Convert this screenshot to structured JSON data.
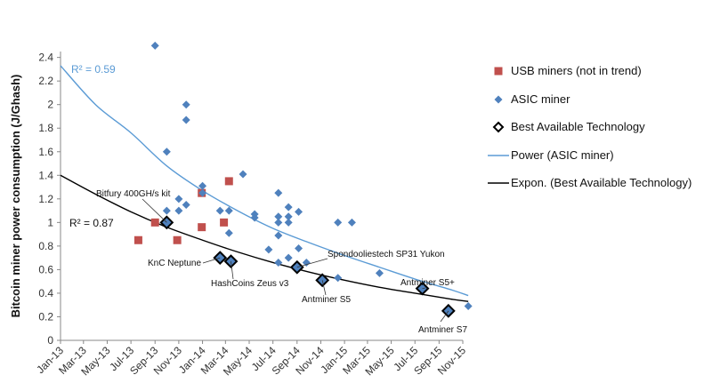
{
  "chart_data": {
    "type": "scatter",
    "title": "",
    "xlabel": "",
    "ylabel": "Bitcoin miner power consumption (J/Ghash)",
    "x_ticks": [
      "Jan-13",
      "Mar-13",
      "May-13",
      "Jul-13",
      "Sep-13",
      "Nov-13",
      "Jan-14",
      "Mar-14",
      "May-14",
      "Jul-14",
      "Sep-14",
      "Nov-14",
      "Jan-15",
      "Mar-15",
      "May-15",
      "Jul-15",
      "Sep-15",
      "Nov-15"
    ],
    "xlim": [
      "2013-01",
      "2015-11"
    ],
    "y_ticks": [
      "0",
      "0.2",
      "0.4",
      "0.6",
      "0.8",
      "1",
      "1.2",
      "1.4",
      "1.6",
      "1.8",
      "2",
      "2.2",
      "2.4"
    ],
    "ylim": [
      0,
      2.45
    ],
    "grid": false,
    "legend_position": "right",
    "series": [
      {
        "name": "USB miners (not in trend)",
        "marker": "square",
        "color": "#c0504d",
        "points": [
          [
            "2013-07-20",
            0.85
          ],
          [
            "2013-09-01",
            1.0
          ],
          [
            "2013-10-28",
            0.85
          ],
          [
            "2013-12-30",
            1.25
          ],
          [
            "2013-12-30",
            0.96
          ],
          [
            "2014-02-25",
            1.0
          ],
          [
            "2014-03-10",
            1.35
          ]
        ]
      },
      {
        "name": "ASIC miner",
        "marker": "diamond",
        "color": "#4f81bd",
        "points": [
          [
            "2013-09-01",
            2.5
          ],
          [
            "2013-10-01",
            1.6
          ],
          [
            "2013-10-01",
            1.1
          ],
          [
            "2013-11-01",
            1.2
          ],
          [
            "2013-11-01",
            1.1
          ],
          [
            "2013-11-20",
            2.0
          ],
          [
            "2013-11-20",
            1.87
          ],
          [
            "2013-11-20",
            1.15
          ],
          [
            "2014-01-01",
            1.31
          ],
          [
            "2014-01-01",
            1.25
          ],
          [
            "2014-02-15",
            1.1
          ],
          [
            "2014-03-10",
            1.1
          ],
          [
            "2014-03-10",
            0.91
          ],
          [
            "2014-04-15",
            1.41
          ],
          [
            "2014-05-15",
            1.07
          ],
          [
            "2014-05-15",
            1.04
          ],
          [
            "2014-06-20",
            0.77
          ],
          [
            "2014-07-15",
            1.25
          ],
          [
            "2014-07-15",
            1.05
          ],
          [
            "2014-07-15",
            1.0
          ],
          [
            "2014-07-15",
            0.89
          ],
          [
            "2014-07-15",
            0.66
          ],
          [
            "2014-08-10",
            1.13
          ],
          [
            "2014-08-10",
            1.05
          ],
          [
            "2014-08-10",
            1.0
          ],
          [
            "2014-08-10",
            0.7
          ],
          [
            "2014-09-05",
            1.09
          ],
          [
            "2014-09-05",
            0.78
          ],
          [
            "2014-09-25",
            0.66
          ],
          [
            "2014-12-15",
            1.0
          ],
          [
            "2014-12-15",
            0.53
          ],
          [
            "2015-01-20",
            1.0
          ],
          [
            "2015-04-01",
            0.57
          ],
          [
            "2015-11-15",
            0.29
          ]
        ]
      },
      {
        "name": "Best Available Technology",
        "marker": "diamond-outline",
        "color": "#000000",
        "points": [
          [
            "2013-10-01",
            1.0
          ],
          [
            "2014-02-15",
            0.7
          ],
          [
            "2014-03-15",
            0.67
          ],
          [
            "2014-09-01",
            0.62
          ],
          [
            "2014-11-05",
            0.51
          ],
          [
            "2015-07-20",
            0.44
          ],
          [
            "2015-09-25",
            0.25
          ]
        ]
      }
    ],
    "trendlines": [
      {
        "name": "Power (ASIC miner)",
        "color": "#5b9bd5",
        "type": "power",
        "label": "R² = 0.59",
        "curve": [
          [
            "2013-01-01",
            2.33
          ],
          [
            "2013-04-01",
            2.0
          ],
          [
            "2013-07-01",
            1.76
          ],
          [
            "2013-10-01",
            1.48
          ],
          [
            "2014-01-01",
            1.27
          ],
          [
            "2014-04-01",
            1.1
          ],
          [
            "2014-07-01",
            0.95
          ],
          [
            "2014-10-01",
            0.83
          ],
          [
            "2015-01-01",
            0.72
          ],
          [
            "2015-04-01",
            0.62
          ],
          [
            "2015-07-01",
            0.52
          ],
          [
            "2015-10-01",
            0.43
          ],
          [
            "2015-11-15",
            0.38
          ]
        ]
      },
      {
        "name": "Expon. (Best Available Technology)",
        "color": "#000000",
        "type": "exponential",
        "label": "R² = 0.87",
        "curve": [
          [
            "2013-01-01",
            1.4
          ],
          [
            "2013-04-01",
            1.24
          ],
          [
            "2013-07-01",
            1.09
          ],
          [
            "2013-10-01",
            0.96
          ],
          [
            "2014-01-01",
            0.85
          ],
          [
            "2014-04-01",
            0.75
          ],
          [
            "2014-07-01",
            0.66
          ],
          [
            "2014-10-01",
            0.58
          ],
          [
            "2015-01-01",
            0.51
          ],
          [
            "2015-04-01",
            0.45
          ],
          [
            "2015-07-01",
            0.4
          ],
          [
            "2015-10-01",
            0.35
          ],
          [
            "2015-11-15",
            0.33
          ]
        ]
      }
    ],
    "annotations": [
      {
        "text": "Bitfury 400GH/s kit",
        "target": [
          "2013-10-01",
          1.0
        ]
      },
      {
        "text": "KnC Neptune",
        "target": [
          "2014-02-15",
          0.7
        ]
      },
      {
        "text": "HashCoins Zeus v3",
        "target": [
          "2014-03-15",
          0.67
        ]
      },
      {
        "text": "Spondooliestech SP31 Yukon",
        "target": [
          "2014-09-01",
          0.62
        ]
      },
      {
        "text": "Antminer S5",
        "target": [
          "2014-11-05",
          0.51
        ]
      },
      {
        "text": "Antminer S5+",
        "target": [
          "2015-07-20",
          0.44
        ]
      },
      {
        "text": "Antminer S7",
        "target": [
          "2015-09-25",
          0.25
        ]
      }
    ]
  }
}
